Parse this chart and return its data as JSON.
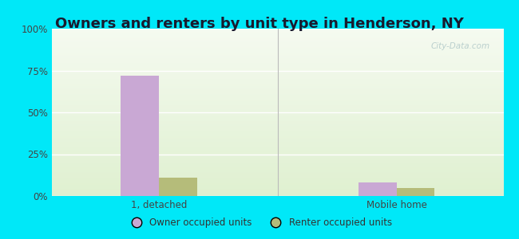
{
  "title": "Owners and renters by unit type in Henderson, NY",
  "categories": [
    "1, detached",
    "Mobile home"
  ],
  "owner_values": [
    72.0,
    8.0
  ],
  "renter_values": [
    11.0,
    5.0
  ],
  "owner_color": "#c9a8d4",
  "renter_color": "#b5bc7a",
  "ylim": [
    0,
    100
  ],
  "yticks": [
    0,
    25,
    50,
    75,
    100
  ],
  "ytick_labels": [
    "0%",
    "25%",
    "50%",
    "75%",
    "100%"
  ],
  "bar_width": 0.32,
  "group_positions": [
    1.0,
    3.0
  ],
  "outer_bg": "#00e8f8",
  "grad_top": "#f5faf0",
  "grad_bottom": "#dff0d0",
  "title_fontsize": 13,
  "tick_fontsize": 8.5,
  "legend_label_owner": "Owner occupied units",
  "legend_label_renter": "Renter occupied units",
  "watermark": "City-Data.com",
  "divider_x": 2.0,
  "xlim": [
    0.1,
    3.9
  ]
}
